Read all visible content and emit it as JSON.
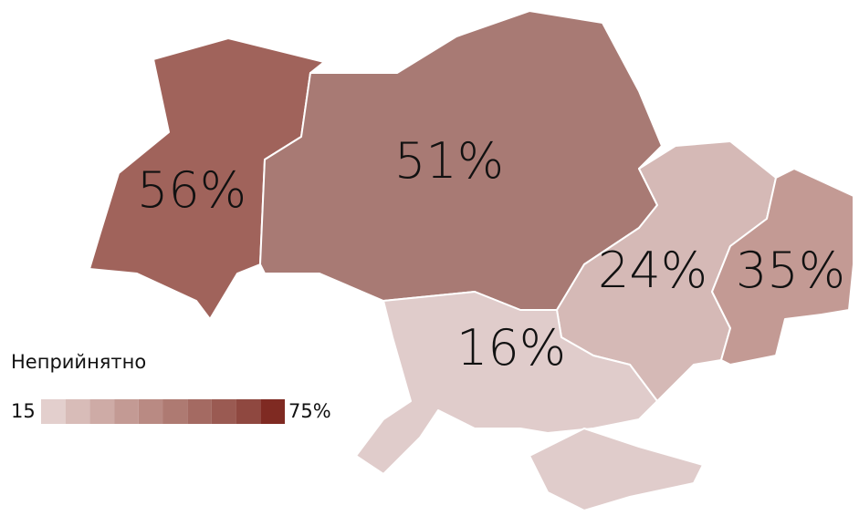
{
  "chart_data": {
    "type": "choropleth",
    "values": [
      56,
      51,
      24,
      35,
      16
    ],
    "value_labels": [
      "56%",
      "51%",
      "24%",
      "35%",
      "16%"
    ],
    "colors": [
      "#a0635b",
      "#a87a74",
      "#d5b9b6",
      "#c39a94",
      "#e0cccb"
    ],
    "legend": {
      "title": "Неприйнятно",
      "min": 15,
      "max": {
        "value": 75,
        "label": "75%"
      },
      "colors": [
        "#e3cfcd",
        "#d8bcb8",
        "#ceaba6",
        "#c39a94",
        "#b98a83",
        "#ae7a72",
        "#a46a62",
        "#9a5a52",
        "#8f4840",
        "#7f2a22"
      ]
    }
  }
}
